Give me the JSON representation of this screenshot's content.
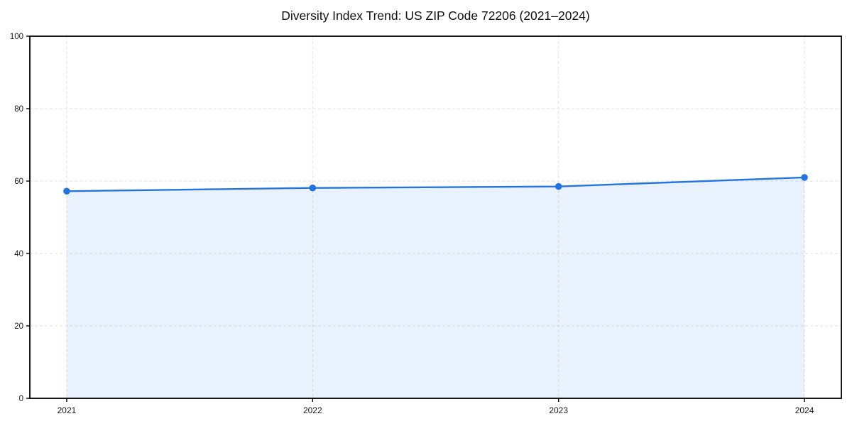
{
  "page": {
    "background": "#ffffff"
  },
  "chart_data": {
    "type": "area",
    "title": "Diversity Index Trend: US ZIP Code 72206 (2021–2024)",
    "x": [
      2021,
      2022,
      2023,
      2024
    ],
    "x_tick_labels": [
      "2021",
      "2022",
      "2023",
      "2024"
    ],
    "series": [
      {
        "name": "Diversity Index",
        "values": [
          57.2,
          58.1,
          58.5,
          61.0
        ]
      }
    ],
    "xlabel": "",
    "ylabel": "",
    "xlim": [
      2020.85,
      2024.15
    ],
    "ylim": [
      0,
      100
    ],
    "y_ticks": [
      0,
      20,
      40,
      60,
      80,
      100
    ],
    "grid": "dashed-both-axes",
    "legend": "none",
    "colors": {
      "line": "#2374e1",
      "marker": "#2374e1",
      "fill": "rgba(35,116,225,0.10)",
      "grid": "#e1e1e1",
      "spine": "#000000",
      "tick_text": "#1a1a1a"
    }
  }
}
